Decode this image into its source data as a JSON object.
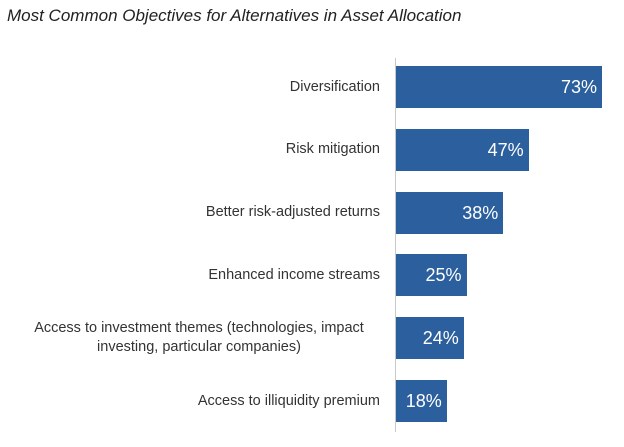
{
  "chart_data": {
    "type": "bar",
    "orientation": "horizontal",
    "title": "Most Common Objectives for Alternatives in Asset Allocation",
    "categories": [
      "Diversification",
      "Risk mitigation",
      "Better risk-adjusted returns",
      "Enhanced income streams",
      "Access to investment themes (technologies, impact investing, particular companies)",
      "Access to illiquidity premium"
    ],
    "values": [
      73,
      47,
      38,
      25,
      24,
      18
    ],
    "value_labels": [
      "73%",
      "47%",
      "38%",
      "25%",
      "24%",
      "18%"
    ],
    "color": "#2b5f9d"
  }
}
